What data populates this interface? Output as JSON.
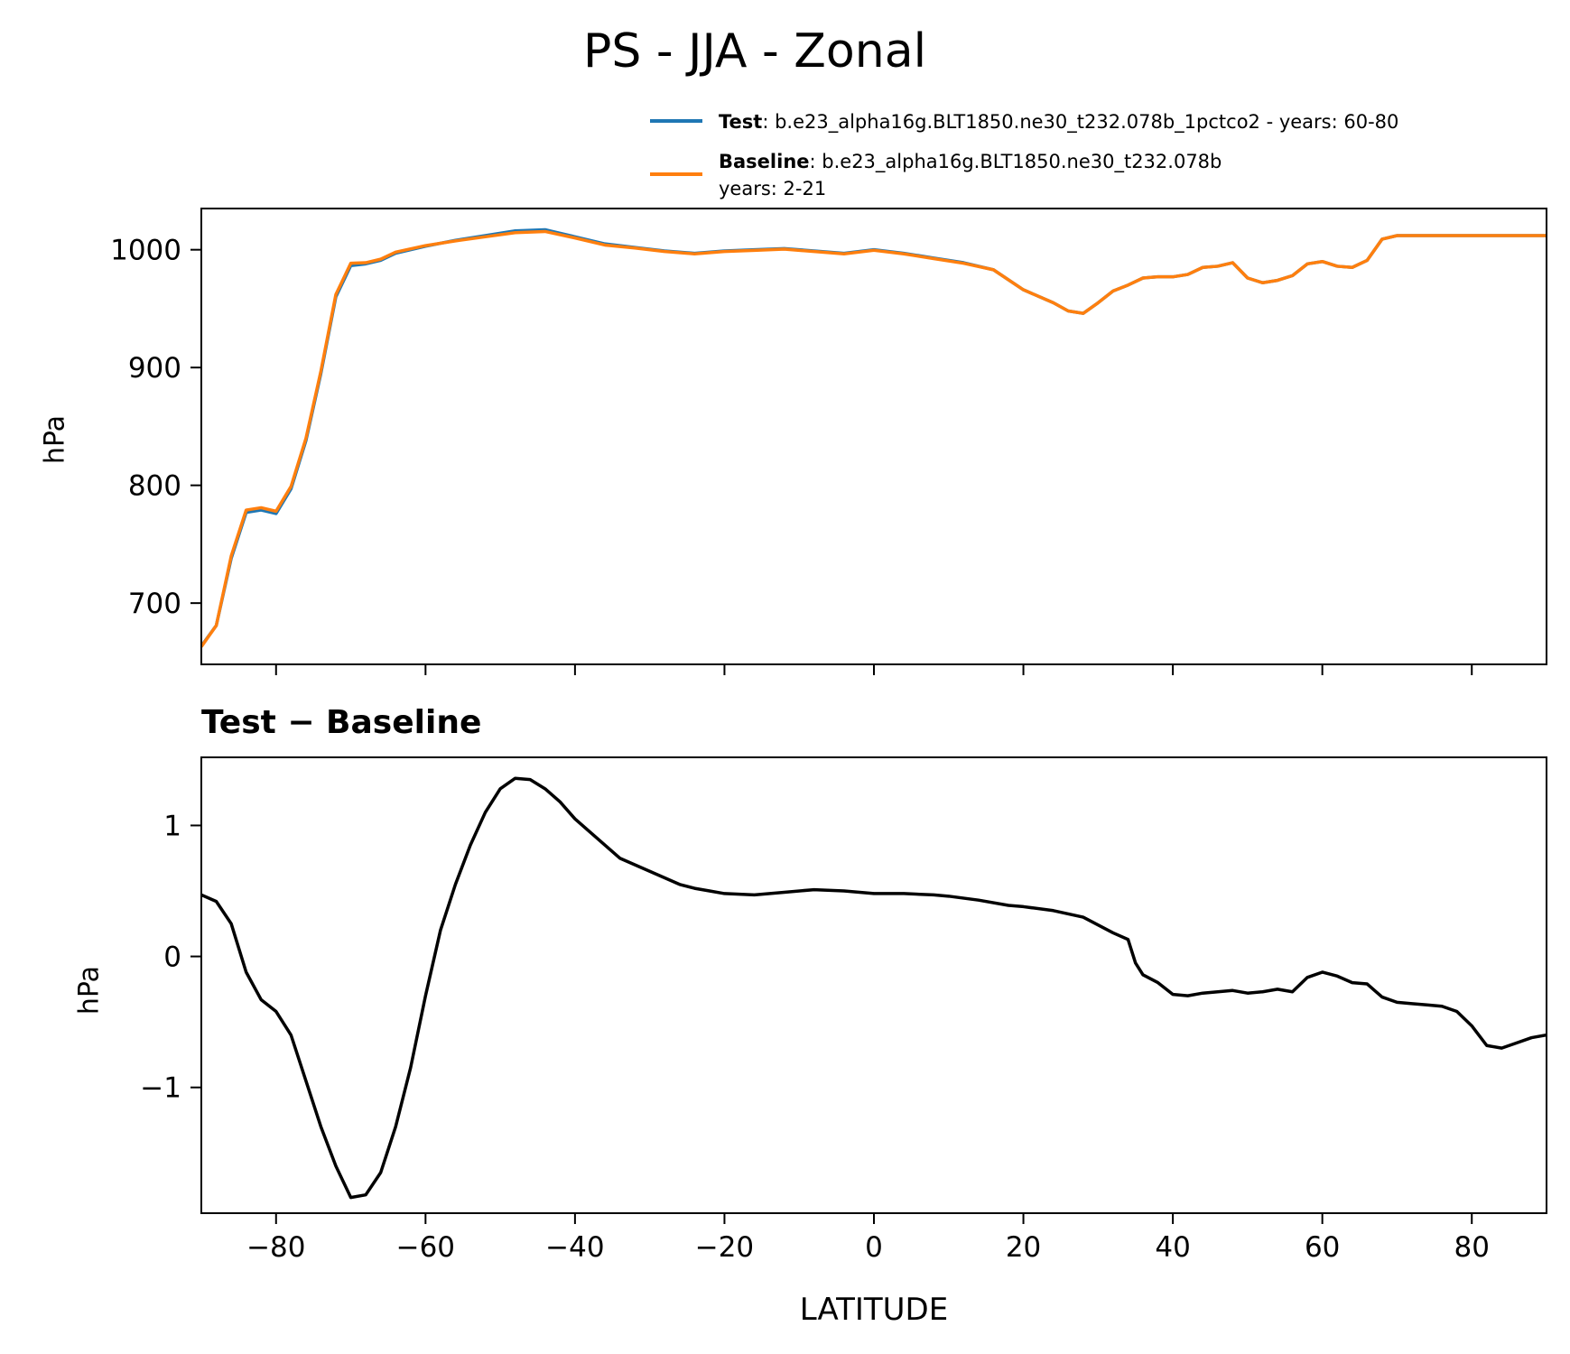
{
  "chart_data": [
    {
      "type": "line",
      "panel": "top",
      "title": "PS - JJA - Zonal",
      "xlabel": "",
      "ylabel": "hPa",
      "xlim": [
        -90,
        90
      ],
      "ylim": [
        648,
        1035
      ],
      "yticks": [
        700,
        800,
        900,
        1000
      ],
      "ytick_labels": [
        "700",
        "800",
        "900",
        "1000"
      ],
      "xticks": [
        -80,
        -60,
        -40,
        -20,
        0,
        20,
        40,
        60,
        80
      ],
      "xtick_labels_visible": false,
      "grid": false,
      "legend": {
        "placement": "above-right",
        "entries": [
          {
            "label_bold": "Test",
            "label_rest": ": b.e23_alpha16g.BLT1850.ne30_t232.078b_1pctco2 - years: 60-80",
            "label_line2": "",
            "color": "#1f77b4"
          },
          {
            "label_bold": "Baseline",
            "label_rest": ": b.e23_alpha16g.BLT1850.ne30_t232.078b",
            "label_line2": "years: 2-21",
            "color": "#ff7f0e"
          }
        ]
      },
      "x": [
        -90,
        -88,
        -86,
        -84,
        -82,
        -80,
        -78,
        -76,
        -74,
        -72,
        -70,
        -68,
        -66,
        -64,
        -60,
        -56,
        -52,
        -48,
        -44,
        -40,
        -36,
        -32,
        -28,
        -24,
        -20,
        -16,
        -12,
        -8,
        -4,
        0,
        4,
        8,
        12,
        16,
        20,
        24,
        26,
        28,
        30,
        32,
        34,
        36,
        38,
        40,
        42,
        44,
        46,
        48,
        50,
        52,
        54,
        56,
        58,
        60,
        62,
        64,
        66,
        68,
        70,
        72,
        74,
        76,
        78,
        80,
        82,
        84,
        86,
        88,
        90
      ],
      "series": [
        {
          "name": "Test",
          "color": "#1f77b4",
          "values": [
            663.5,
            681,
            738,
            777,
            779,
            776,
            797,
            838,
            895,
            960,
            986.5,
            988,
            991,
            997,
            1003,
            1008,
            1012,
            1016,
            1017,
            1011,
            1005,
            1002,
            999,
            997,
            999,
            1000,
            1001,
            999,
            997,
            1000,
            997,
            993,
            989,
            983,
            966,
            955,
            948,
            946,
            955,
            965,
            970,
            976,
            977,
            977,
            979,
            985,
            986,
            989,
            976,
            972,
            974,
            978,
            988,
            990,
            986,
            985,
            991,
            1009,
            1012,
            1012,
            1012,
            1012,
            1012,
            1012,
            1012,
            1012,
            1012,
            1012,
            1012
          ]
        },
        {
          "name": "Baseline",
          "color": "#ff7f0e",
          "values": [
            663,
            681,
            740,
            779,
            781,
            778,
            799,
            840,
            897,
            962,
            988.5,
            989,
            992,
            998,
            1003.5,
            1007.5,
            1011,
            1014.5,
            1015.5,
            1010,
            1004,
            1001.5,
            998.5,
            996.5,
            998.5,
            999.5,
            1000.5,
            998.5,
            996.5,
            999.5,
            996.5,
            992.5,
            988.5,
            983,
            966,
            955,
            948,
            946,
            955,
            965,
            970,
            976,
            977,
            977,
            979,
            985,
            986,
            989,
            976,
            972,
            974,
            978,
            988,
            990,
            986,
            985,
            991,
            1009,
            1012,
            1012,
            1012,
            1012,
            1012,
            1012,
            1012,
            1012,
            1012,
            1012,
            1012
          ]
        }
      ]
    },
    {
      "type": "line",
      "panel": "bottom",
      "title": "Test − Baseline",
      "xlabel": "LATITUDE",
      "ylabel": "hPa",
      "xlim": [
        -90,
        90
      ],
      "ylim": [
        -1.96,
        1.52
      ],
      "yticks": [
        -1,
        0,
        1
      ],
      "ytick_labels": [
        "−1",
        "0",
        "1"
      ],
      "xticks": [
        -80,
        -60,
        -40,
        -20,
        0,
        20,
        40,
        60,
        80
      ],
      "xtick_labels": [
        "−80",
        "−60",
        "−40",
        "−20",
        "0",
        "20",
        "40",
        "60",
        "80"
      ],
      "grid": false,
      "series": [
        {
          "name": "Test − Baseline",
          "color": "#000000",
          "x": [
            -90,
            -88,
            -86,
            -84,
            -82,
            -80,
            -78,
            -76,
            -74,
            -72,
            -70,
            -68,
            -66,
            -64,
            -62,
            -60,
            -58,
            -56,
            -54,
            -52,
            -50,
            -48,
            -46,
            -44,
            -42,
            -40,
            -38,
            -36,
            -34,
            -32,
            -30,
            -28,
            -26,
            -24,
            -22,
            -20,
            -16,
            -12,
            -8,
            -4,
            0,
            4,
            8,
            10,
            14,
            18,
            20,
            24,
            28,
            32,
            34,
            35,
            36,
            38,
            40,
            42,
            44,
            46,
            48,
            50,
            52,
            54,
            56,
            58,
            60,
            62,
            64,
            66,
            68,
            70,
            72,
            74,
            76,
            78,
            80,
            82,
            84,
            86,
            88,
            90
          ],
          "values": [
            0.47,
            0.42,
            0.25,
            -0.12,
            -0.33,
            -0.42,
            -0.6,
            -0.95,
            -1.3,
            -1.6,
            -1.84,
            -1.82,
            -1.65,
            -1.3,
            -0.85,
            -0.3,
            0.2,
            0.55,
            0.85,
            1.1,
            1.28,
            1.36,
            1.35,
            1.28,
            1.18,
            1.05,
            0.95,
            0.85,
            0.75,
            0.7,
            0.65,
            0.6,
            0.55,
            0.52,
            0.5,
            0.48,
            0.47,
            0.49,
            0.51,
            0.5,
            0.48,
            0.48,
            0.47,
            0.46,
            0.43,
            0.39,
            0.38,
            0.35,
            0.3,
            0.18,
            0.13,
            -0.05,
            -0.14,
            -0.2,
            -0.29,
            -0.3,
            -0.28,
            -0.27,
            -0.26,
            -0.28,
            -0.27,
            -0.25,
            -0.27,
            -0.16,
            -0.12,
            -0.15,
            -0.2,
            -0.21,
            -0.31,
            -0.35,
            -0.36,
            -0.37,
            -0.38,
            -0.42,
            -0.53,
            -0.68,
            -0.7,
            -0.66,
            -0.62,
            -0.6
          ]
        }
      ]
    }
  ]
}
